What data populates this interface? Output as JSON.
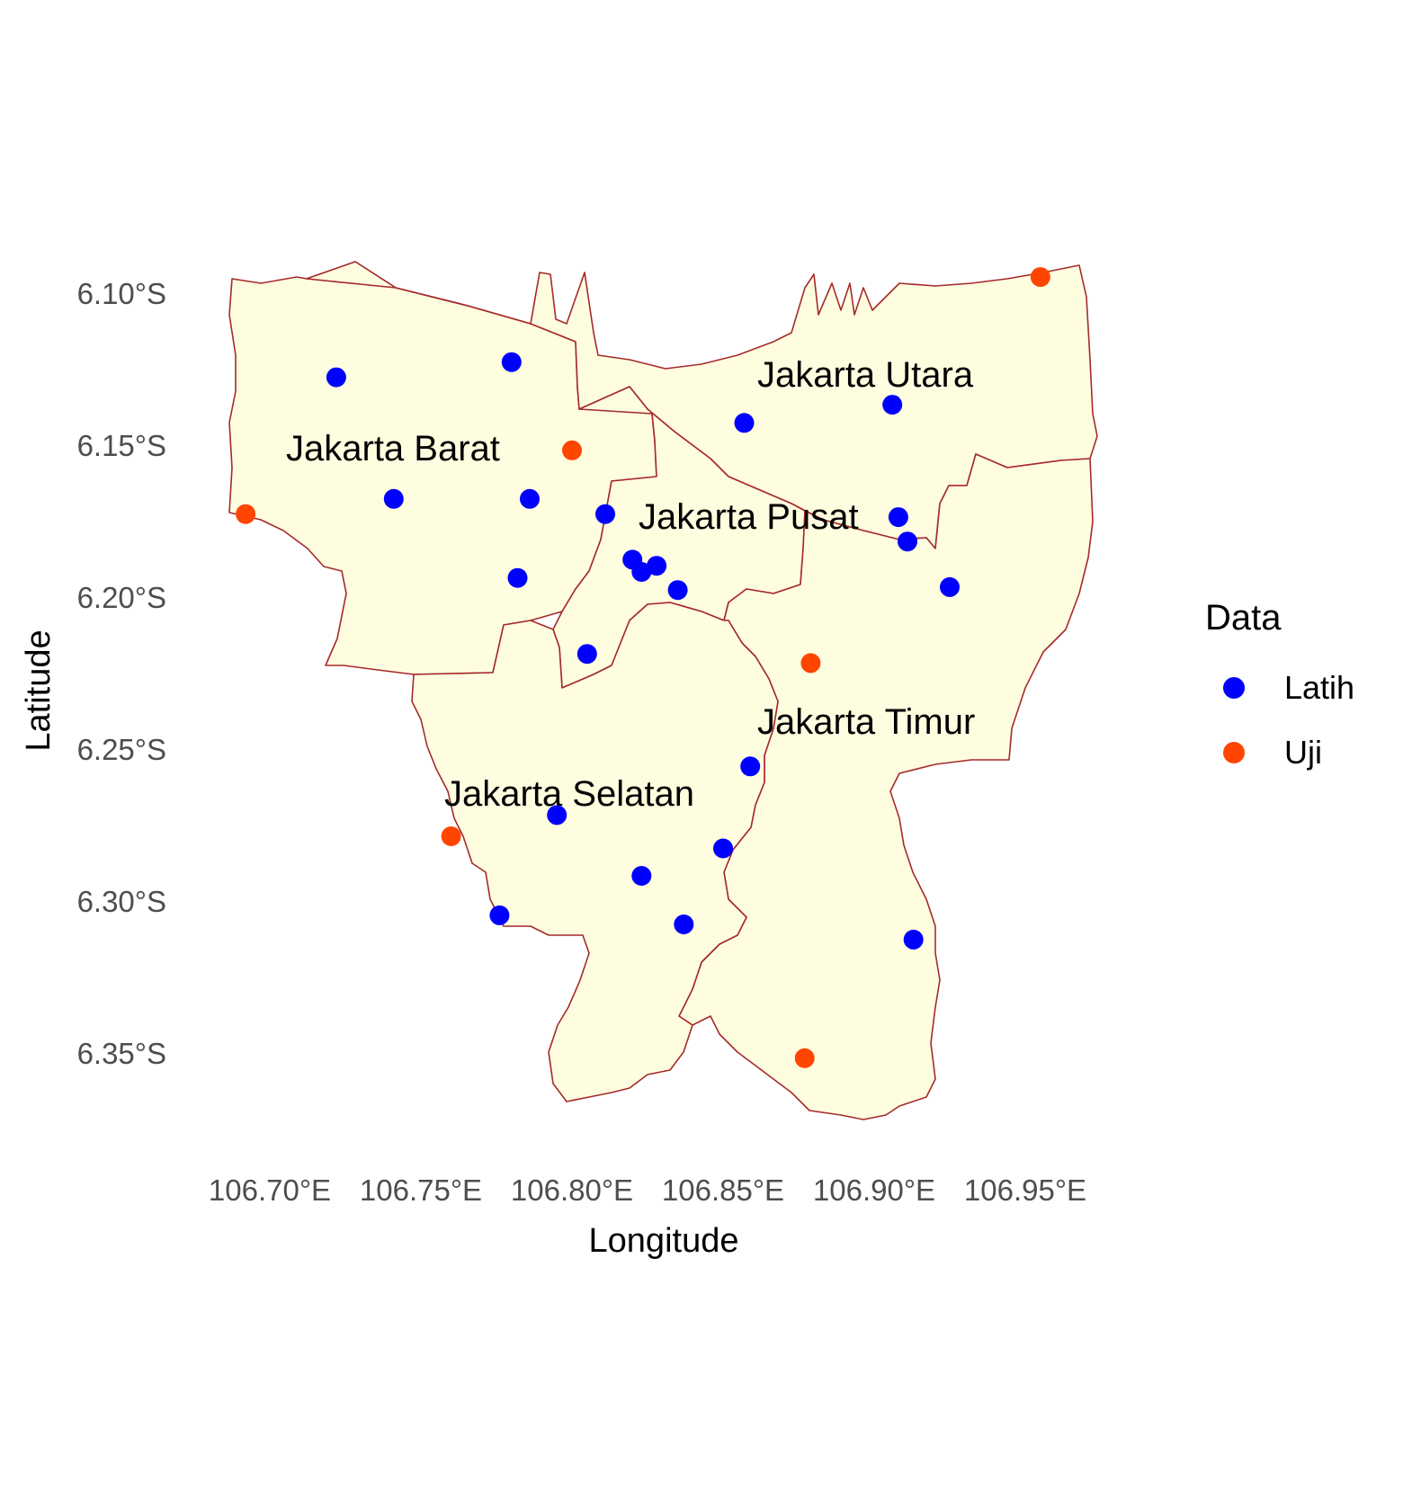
{
  "map": {
    "x_axis_title": "Longitude",
    "y_axis_title": "Latitude",
    "x_ticks": [
      "106.70°E",
      "106.75°E",
      "106.80°E",
      "106.85°E",
      "106.90°E",
      "106.95°E"
    ],
    "y_ticks": [
      "6.10°S",
      "6.15°S",
      "6.20°S",
      "6.25°S",
      "6.30°S",
      "6.35°S"
    ],
    "regions": [
      "Jakarta Utara",
      "Jakarta Barat",
      "Jakarta Pusat",
      "Jakarta Timur",
      "Jakarta Selatan"
    ],
    "land_color": "#fffde0",
    "border_color": "#a52a2a"
  },
  "legend": {
    "title": "Data",
    "items": [
      {
        "label": "Latih",
        "color": "#0000ff"
      },
      {
        "label": "Uji",
        "color": "#ff4500"
      }
    ]
  },
  "chart_data": {
    "type": "scatter",
    "xlabel": "Longitude",
    "ylabel": "Latitude",
    "xlim": [
      106.68,
      106.97
    ],
    "ylim": [
      -6.375,
      -6.09
    ],
    "legend_position": "right",
    "grid": false,
    "series": [
      {
        "name": "Latih",
        "color": "#0000ff",
        "points": [
          [
            106.722,
            -6.128
          ],
          [
            106.78,
            -6.123
          ],
          [
            106.741,
            -6.168
          ],
          [
            106.786,
            -6.168
          ],
          [
            106.782,
            -6.194
          ],
          [
            106.811,
            -6.173
          ],
          [
            106.82,
            -6.188
          ],
          [
            106.823,
            -6.192
          ],
          [
            106.828,
            -6.19
          ],
          [
            106.835,
            -6.198
          ],
          [
            106.805,
            -6.219
          ],
          [
            106.857,
            -6.143
          ],
          [
            106.906,
            -6.137
          ],
          [
            106.908,
            -6.174
          ],
          [
            106.911,
            -6.182
          ],
          [
            106.925,
            -6.197
          ],
          [
            106.859,
            -6.256
          ],
          [
            106.795,
            -6.272
          ],
          [
            106.85,
            -6.283
          ],
          [
            106.823,
            -6.292
          ],
          [
            106.776,
            -6.305
          ],
          [
            106.837,
            -6.308
          ],
          [
            106.913,
            -6.313
          ]
        ]
      },
      {
        "name": "Uji",
        "color": "#ff4500",
        "points": [
          [
            106.955,
            -6.095
          ],
          [
            106.8,
            -6.152
          ],
          [
            106.692,
            -6.173
          ],
          [
            106.879,
            -6.222
          ],
          [
            106.76,
            -6.279
          ],
          [
            106.877,
            -6.352
          ]
        ]
      }
    ]
  }
}
